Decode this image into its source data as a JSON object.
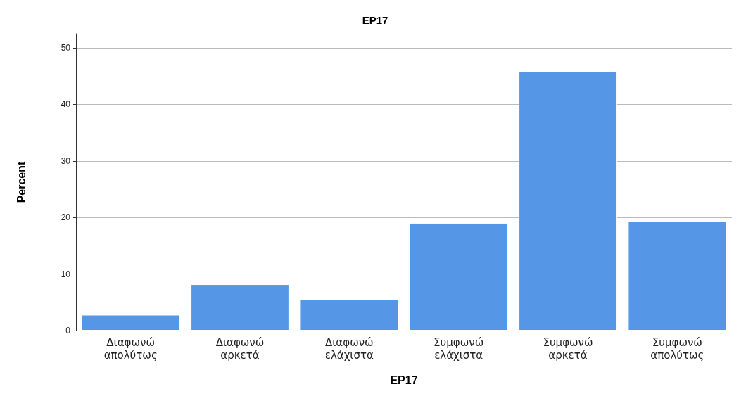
{
  "chart_data": {
    "type": "bar",
    "title": "EP17",
    "xlabel": "EP17",
    "ylabel": "Percent",
    "categories": [
      "Διαφωνώ απολύτως",
      "Διαφωνώ αρκετά",
      "Διαφωνώ ελάχιστα",
      "Συμφωνώ ελάχιστα",
      "Συμφωνώ αρκετά",
      "Συμφωνώ απολύτως"
    ],
    "values": [
      2.8,
      8.2,
      5.5,
      19.0,
      45.8,
      19.4
    ],
    "color": "#5596e6",
    "ylim": [
      0,
      52.5
    ],
    "yticks": [
      0,
      10,
      20,
      30,
      40,
      50
    ],
    "grid": "y"
  }
}
